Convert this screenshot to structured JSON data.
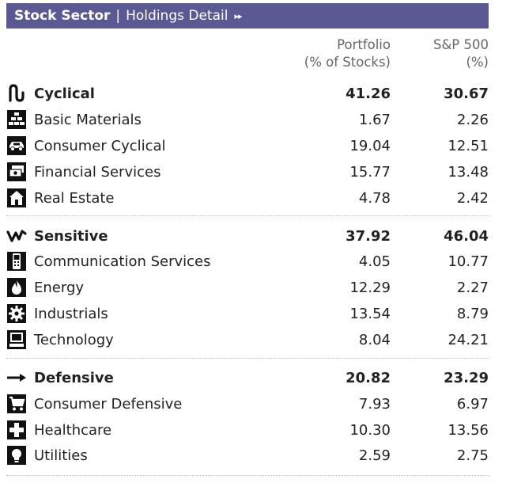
{
  "header": {
    "title": "Stock Sector",
    "separator": "|",
    "link": "Holdings Detail",
    "arrows": "▸▸"
  },
  "columns": {
    "portfolio_line1": "Portfolio",
    "portfolio_line2": "(% of Stocks)",
    "sp500_line1": "S&P 500",
    "sp500_line2": "(%)"
  },
  "groups": [
    {
      "name": "Cyclical",
      "icon": "cyclical-wave-icon",
      "portfolio": "41.26",
      "sp500": "30.67",
      "sectors": [
        {
          "name": "Basic Materials",
          "icon": "bricks-icon",
          "portfolio": "1.67",
          "sp500": "2.26"
        },
        {
          "name": "Consumer Cyclical",
          "icon": "car-icon",
          "portfolio": "19.04",
          "sp500": "12.51"
        },
        {
          "name": "Financial Services",
          "icon": "money-icon",
          "portfolio": "15.77",
          "sp500": "13.48"
        },
        {
          "name": "Real Estate",
          "icon": "house-icon",
          "portfolio": "4.78",
          "sp500": "2.42"
        }
      ]
    },
    {
      "name": "Sensitive",
      "icon": "sensitive-zigzag-icon",
      "portfolio": "37.92",
      "sp500": "46.04",
      "sectors": [
        {
          "name": "Communication Services",
          "icon": "phone-icon",
          "portfolio": "4.05",
          "sp500": "10.77"
        },
        {
          "name": "Energy",
          "icon": "flame-icon",
          "portfolio": "12.29",
          "sp500": "2.27"
        },
        {
          "name": "Industrials",
          "icon": "gear-icon",
          "portfolio": "13.54",
          "sp500": "8.79"
        },
        {
          "name": "Technology",
          "icon": "computer-icon",
          "portfolio": "8.04",
          "sp500": "24.21"
        }
      ]
    },
    {
      "name": "Defensive",
      "icon": "defensive-arrow-icon",
      "portfolio": "20.82",
      "sp500": "23.29",
      "sectors": [
        {
          "name": "Consumer Defensive",
          "icon": "cart-icon",
          "portfolio": "7.93",
          "sp500": "6.97"
        },
        {
          "name": "Healthcare",
          "icon": "cross-icon",
          "portfolio": "10.30",
          "sp500": "13.56"
        },
        {
          "name": "Utilities",
          "icon": "lightbulb-icon",
          "portfolio": "2.59",
          "sp500": "2.75"
        }
      ]
    }
  ]
}
